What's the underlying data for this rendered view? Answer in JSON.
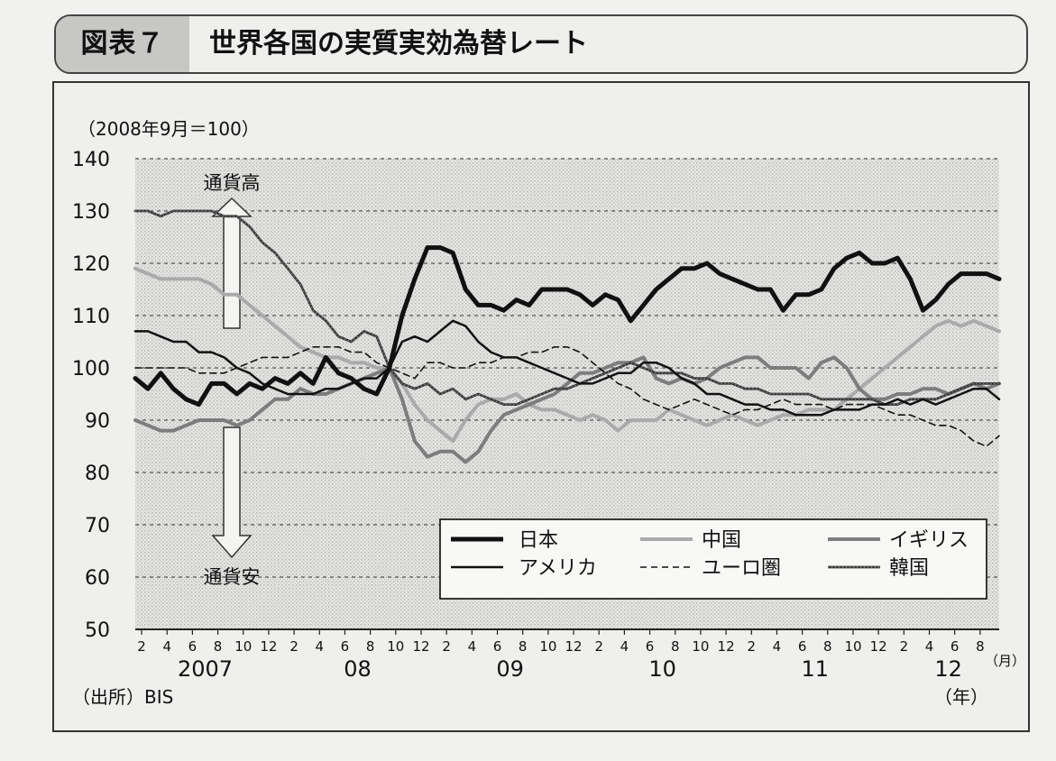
{
  "header": {
    "figure_label": "図表７",
    "title": "世界各国の実質実効為替レート"
  },
  "footer": {
    "source": "（出所）BIS"
  },
  "chart_data": {
    "type": "line",
    "unit_note": "（2008年9月＝100）",
    "ylim": [
      50,
      140
    ],
    "y_ticks": [
      50,
      60,
      70,
      80,
      90,
      100,
      110,
      120,
      130,
      140
    ],
    "grid": "horizontal dashed",
    "month_labels": [
      "2",
      "4",
      "6",
      "8",
      "10",
      "12",
      "2",
      "4",
      "6",
      "8",
      "10",
      "12",
      "2",
      "4",
      "6",
      "8",
      "10",
      "12",
      "2",
      "4",
      "6",
      "8",
      "10",
      "12",
      "2",
      "4",
      "6",
      "8",
      "10",
      "12",
      "2",
      "4",
      "6",
      "8"
    ],
    "year_labels": [
      "2007",
      "08",
      "09",
      "10",
      "11",
      "12"
    ],
    "x_unit_month": "（月）",
    "x_unit_year": "（年）",
    "annotations": {
      "up": "通貨高",
      "down": "通貨安"
    },
    "legend_position": "bottom-right",
    "x": [
      "2007-01",
      "2007-02",
      "2007-03",
      "2007-04",
      "2007-05",
      "2007-06",
      "2007-07",
      "2007-08",
      "2007-09",
      "2007-10",
      "2007-11",
      "2007-12",
      "2008-01",
      "2008-02",
      "2008-03",
      "2008-04",
      "2008-05",
      "2008-06",
      "2008-07",
      "2008-08",
      "2008-09",
      "2008-10",
      "2008-11",
      "2008-12",
      "2009-01",
      "2009-02",
      "2009-03",
      "2009-04",
      "2009-05",
      "2009-06",
      "2009-07",
      "2009-08",
      "2009-09",
      "2009-10",
      "2009-11",
      "2009-12",
      "2010-01",
      "2010-02",
      "2010-03",
      "2010-04",
      "2010-05",
      "2010-06",
      "2010-07",
      "2010-08",
      "2010-09",
      "2010-10",
      "2010-11",
      "2010-12",
      "2011-01",
      "2011-02",
      "2011-03",
      "2011-04",
      "2011-05",
      "2011-06",
      "2011-07",
      "2011-08",
      "2011-09",
      "2011-10",
      "2011-11",
      "2011-12",
      "2012-01",
      "2012-02",
      "2012-03",
      "2012-04",
      "2012-05",
      "2012-06",
      "2012-07",
      "2012-08",
      "2012-09"
    ],
    "series": [
      {
        "name": "日本",
        "color": "#111111",
        "width": 5,
        "dash": "",
        "values": [
          98,
          96,
          99,
          96,
          94,
          93,
          97,
          97,
          95,
          97,
          96,
          98,
          97,
          99,
          97,
          102,
          99,
          98,
          96,
          95,
          100,
          110,
          117,
          123,
          123,
          122,
          115,
          112,
          112,
          111,
          113,
          112,
          115,
          115,
          115,
          114,
          112,
          114,
          113,
          109,
          112,
          115,
          117,
          119,
          119,
          120,
          118,
          117,
          116,
          115,
          115,
          111,
          114,
          114,
          115,
          119,
          121,
          122,
          120,
          120,
          121,
          117,
          111,
          113,
          116,
          118,
          118,
          118,
          117
        ]
      },
      {
        "name": "中国",
        "color": "#aaaaaa",
        "width": 4,
        "dash": "",
        "values": [
          119,
          118,
          117,
          117,
          117,
          117,
          116,
          114,
          114,
          112,
          110,
          108,
          106,
          104,
          103,
          102,
          102,
          101,
          101,
          100,
          100,
          97,
          93,
          90,
          88,
          86,
          90,
          93,
          94,
          94,
          95,
          93,
          92,
          92,
          91,
          90,
          91,
          90,
          88,
          90,
          90,
          90,
          92,
          91,
          90,
          89,
          90,
          91,
          90,
          89,
          90,
          91,
          91,
          92,
          92,
          92,
          94,
          96,
          98,
          100,
          102,
          104,
          106,
          108,
          109,
          108,
          109,
          108,
          107
        ]
      },
      {
        "name": "イギリス",
        "color": "#7d7d7d",
        "width": 4,
        "dash": "",
        "values": [
          90,
          89,
          88,
          88,
          89,
          90,
          90,
          90,
          89,
          90,
          92,
          94,
          94,
          96,
          95,
          95,
          96,
          97,
          98,
          99,
          100,
          94,
          86,
          83,
          84,
          84,
          82,
          84,
          88,
          91,
          92,
          93,
          94,
          95,
          97,
          99,
          99,
          100,
          101,
          101,
          102,
          98,
          97,
          98,
          97,
          98,
          100,
          101,
          102,
          102,
          100,
          100,
          100,
          98,
          101,
          102,
          100,
          96,
          94,
          94,
          95,
          95,
          96,
          96,
          95,
          96,
          97,
          96,
          97
        ]
      },
      {
        "name": "アメリカ",
        "color": "#111111",
        "width": 2.5,
        "dash": "",
        "values": [
          107,
          107,
          106,
          105,
          105,
          103,
          103,
          102,
          100,
          99,
          97,
          96,
          95,
          95,
          95,
          96,
          96,
          97,
          98,
          98,
          100,
          105,
          106,
          105,
          107,
          109,
          108,
          105,
          103,
          102,
          102,
          101,
          100,
          99,
          98,
          97,
          97,
          98,
          99,
          99,
          101,
          101,
          100,
          98,
          97,
          95,
          95,
          94,
          93,
          93,
          92,
          92,
          91,
          91,
          91,
          92,
          92,
          92,
          93,
          93,
          94,
          93,
          94,
          93,
          94,
          95,
          96,
          96,
          94
        ]
      },
      {
        "name": "ユーロ圏",
        "color": "#111111",
        "width": 1.6,
        "dash": "7,5",
        "values": [
          100,
          100,
          100,
          100,
          100,
          99,
          99,
          99,
          100,
          101,
          102,
          102,
          102,
          103,
          104,
          104,
          104,
          103,
          103,
          101,
          100,
          99,
          98,
          101,
          101,
          100,
          100,
          101,
          101,
          102,
          102,
          103,
          103,
          104,
          104,
          103,
          101,
          99,
          97,
          96,
          94,
          93,
          92,
          93,
          94,
          93,
          92,
          91,
          92,
          92,
          93,
          94,
          93,
          93,
          93,
          92,
          93,
          93,
          93,
          92,
          91,
          91,
          90,
          89,
          89,
          88,
          86,
          85,
          87
        ]
      },
      {
        "name": "韓国",
        "color": "#3c3c3c",
        "width": 2.8,
        "dash": "",
        "values": [
          130,
          130,
          129,
          130,
          130,
          130,
          130,
          129,
          129,
          127,
          124,
          122,
          119,
          116,
          111,
          109,
          106,
          105,
          107,
          106,
          100,
          97,
          96,
          97,
          95,
          96,
          94,
          95,
          94,
          93,
          93,
          94,
          95,
          96,
          96,
          97,
          98,
          99,
          100,
          101,
          100,
          99,
          99,
          99,
          98,
          98,
          97,
          97,
          96,
          96,
          95,
          95,
          95,
          95,
          94,
          94,
          94,
          94,
          94,
          93,
          93,
          94,
          94,
          94,
          95,
          96,
          97,
          97,
          97
        ]
      }
    ]
  }
}
